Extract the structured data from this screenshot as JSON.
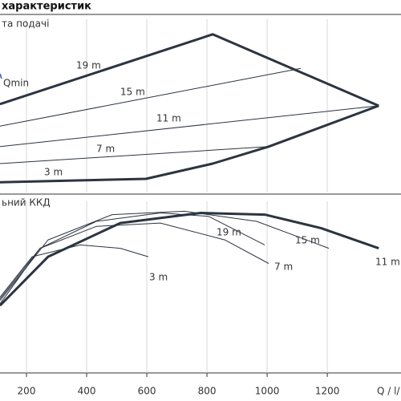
{
  "heading": "характеристик",
  "chart_data": [
    {
      "type": "line",
      "title": "та подачі",
      "annotation": "Qmin",
      "xlim": [
        112,
        1445
      ],
      "ylim": [
        0,
        100
      ],
      "color": "#2c3440",
      "series": [
        {
          "label": "19 m",
          "thick": true,
          "x": [
            112,
            819,
            1371
          ],
          "values": [
            52,
            93,
            51
          ]
        },
        {
          "label": "15 m",
          "thick": false,
          "x": [
            112,
            1112
          ],
          "values": [
            39,
            73
          ]
        },
        {
          "label": "11 m",
          "thick": false,
          "x": [
            112,
            1371
          ],
          "values": [
            27,
            51
          ]
        },
        {
          "label": "7 m",
          "thick": false,
          "x": [
            112,
            1005
          ],
          "values": [
            17,
            27
          ]
        },
        {
          "label": "3 m",
          "thick": true,
          "x": [
            112,
            597,
            819,
            1005,
            1371
          ],
          "values": [
            6,
            8,
            17,
            27,
            51
          ]
        }
      ]
    },
    {
      "type": "line",
      "title": "ьний ККД",
      "x_label": "Q / l/",
      "xlim": [
        112,
        1445
      ],
      "ylim": [
        0,
        100
      ],
      "xticks": [
        200,
        400,
        600,
        800,
        1000,
        1200
      ],
      "color": "#2c3440",
      "series": [
        {
          "label": "11 m",
          "thick": true,
          "x": [
            112,
            272,
            512,
            779,
            992,
            1179,
            1371
          ],
          "values": [
            40,
            69,
            89,
            95,
            94,
            86,
            74
          ]
        },
        {
          "label": "19 m",
          "thick": false,
          "x": [
            112,
            245,
            432,
            645,
            805,
            992
          ],
          "values": [
            41,
            74,
            90,
            95,
            93,
            76
          ]
        },
        {
          "label": "15 m",
          "thick": false,
          "x": [
            112,
            272,
            485,
            725,
            965,
            1205
          ],
          "values": [
            43,
            79,
            94,
            96,
            90,
            74
          ]
        },
        {
          "label": "7 m",
          "thick": false,
          "x": [
            112,
            245,
            432,
            645,
            859,
            1005
          ],
          "values": [
            44,
            74,
            87,
            89,
            79,
            65
          ]
        },
        {
          "label": "3 m",
          "thick": false,
          "x": [
            112,
            219,
            379,
            512,
            605
          ],
          "values": [
            45,
            69,
            76,
            74,
            69
          ]
        }
      ]
    }
  ]
}
